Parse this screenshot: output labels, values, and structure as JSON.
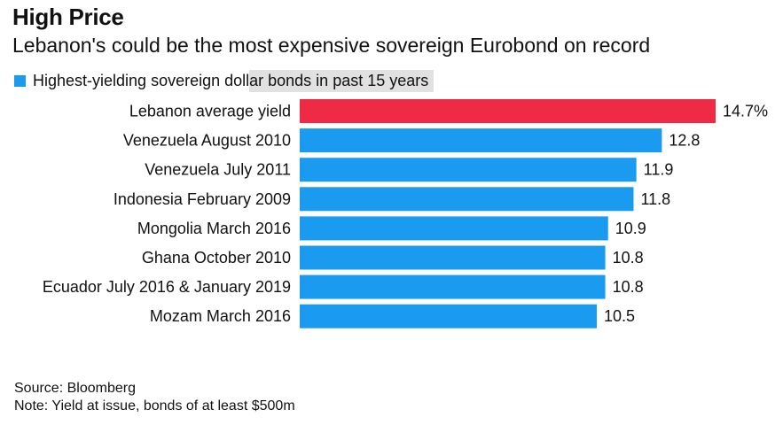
{
  "header": {
    "title": "High Price",
    "subtitle": "Lebanon's could be the most expensive sovereign Eurobond on record"
  },
  "legend": {
    "label": "Highest-yielding sovereign dollar bonds in past 15 years",
    "color": "#1a9bf0"
  },
  "footer": {
    "source": "Source: Bloomberg",
    "note": "Note: Yield at issue, bonds of at least $500m"
  },
  "chart_data": {
    "type": "bar",
    "orientation": "horizontal",
    "categories": [
      "Lebanon average yield",
      "Venezuela August 2010",
      "Venezuela July 2011",
      "Indonesia February 2009",
      "Mongolia March 2016",
      "Ghana October 2010",
      "Ecuador July 2016 & January 2019",
      "Mozam March 2016"
    ],
    "values": [
      14.7,
      12.8,
      11.9,
      11.8,
      10.9,
      10.8,
      10.8,
      10.5
    ],
    "value_labels": [
      "14.7%",
      "12.8",
      "11.9",
      "11.8",
      "10.9",
      "10.8",
      "10.8",
      "10.5"
    ],
    "colors": [
      "#ee2a45",
      "#1a9bf0",
      "#1a9bf0",
      "#1a9bf0",
      "#1a9bf0",
      "#1a9bf0",
      "#1a9bf0",
      "#1a9bf0"
    ],
    "highlight_color": "#ee2a45",
    "bar_color": "#1a9bf0",
    "xlim": [
      0,
      14.7
    ],
    "grid": false,
    "legend_position": "top-left"
  }
}
